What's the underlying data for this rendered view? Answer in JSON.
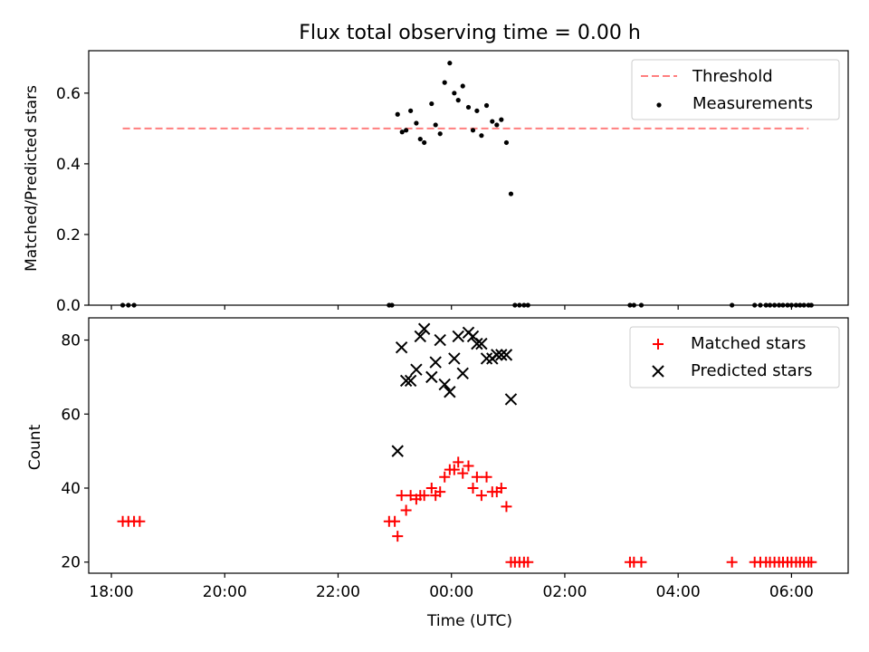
{
  "chart_data": [
    {
      "type": "scatter",
      "title": "Flux total observing time = 0.00 h",
      "xlabel": "",
      "ylabel": "Matched/Predicted stars",
      "xlim": [
        -6.4,
        7.0
      ],
      "ylim": [
        0.0,
        0.72
      ],
      "x_tick_values": [
        -6,
        -4,
        -2,
        0,
        2,
        4,
        6
      ],
      "x_tick_labels": [
        "",
        "",
        "",
        "",
        "",
        "",
        ""
      ],
      "y_ticks": [
        0.0,
        0.2,
        0.4,
        0.6
      ],
      "y_tick_labels": [
        "0.0",
        "0.2",
        "0.4",
        "0.6"
      ],
      "legend_position": "top-right",
      "threshold": {
        "name": "Threshold",
        "y": 0.5,
        "x_start": -5.8,
        "x_end": 6.3,
        "color": "#ff7f7f"
      },
      "series": [
        {
          "name": "Measurements",
          "color": "#000000",
          "x": [
            -5.8,
            -5.7,
            -5.6,
            -1.1,
            -1.05,
            -0.95,
            -0.87,
            -0.8,
            -0.72,
            -0.62,
            -0.55,
            -0.48,
            -0.35,
            -0.28,
            -0.2,
            -0.12,
            -0.03,
            0.05,
            0.12,
            0.2,
            0.3,
            0.38,
            0.45,
            0.53,
            0.62,
            0.72,
            0.8,
            0.88,
            0.97,
            1.05,
            1.12,
            1.2,
            1.28,
            1.35,
            3.15,
            3.22,
            3.35,
            4.95,
            5.35,
            5.45,
            5.55,
            5.62,
            5.7,
            5.78,
            5.85,
            5.93,
            6.0,
            6.08,
            6.15,
            6.22,
            6.3,
            6.35
          ],
          "y": [
            0,
            0,
            0,
            0,
            0,
            0.54,
            0.49,
            0.495,
            0.55,
            0.515,
            0.47,
            0.46,
            0.57,
            0.51,
            0.485,
            0.63,
            0.685,
            0.6,
            0.58,
            0.62,
            0.56,
            0.495,
            0.55,
            0.48,
            0.565,
            0.52,
            0.51,
            0.525,
            0.46,
            0.315,
            0,
            0,
            0,
            0,
            0,
            0,
            0,
            0,
            0,
            0,
            0,
            0,
            0,
            0,
            0,
            0,
            0,
            0,
            0,
            0,
            0,
            0
          ]
        }
      ]
    },
    {
      "type": "scatter",
      "title": "",
      "xlabel": "Time (UTC)",
      "ylabel": "Count",
      "xlim": [
        -6.4,
        7.0
      ],
      "ylim": [
        17,
        86
      ],
      "x_tick_values": [
        -6,
        -4,
        -2,
        0,
        2,
        4,
        6
      ],
      "x_tick_labels": [
        "18:00",
        "20:00",
        "22:00",
        "00:00",
        "02:00",
        "04:00",
        "06:00"
      ],
      "y_ticks": [
        20,
        40,
        60,
        80
      ],
      "y_tick_labels": [
        "20",
        "40",
        "60",
        "80"
      ],
      "legend_position": "top-right",
      "series": [
        {
          "name": "Matched stars",
          "marker": "plus",
          "color": "#ff0000",
          "x": [
            -5.8,
            -5.7,
            -5.6,
            -5.5,
            -1.1,
            -1.0,
            -0.95,
            -0.88,
            -0.8,
            -0.72,
            -0.62,
            -0.55,
            -0.48,
            -0.35,
            -0.28,
            -0.2,
            -0.12,
            -0.03,
            0.05,
            0.12,
            0.2,
            0.3,
            0.38,
            0.45,
            0.53,
            0.62,
            0.72,
            0.8,
            0.88,
            0.97,
            1.05,
            1.12,
            1.2,
            1.28,
            1.35,
            3.15,
            3.22,
            3.35,
            4.95,
            5.35,
            5.45,
            5.55,
            5.62,
            5.7,
            5.78,
            5.85,
            5.93,
            6.0,
            6.08,
            6.15,
            6.22,
            6.3,
            6.35
          ],
          "y": [
            31,
            31,
            31,
            31,
            31,
            31,
            27,
            38,
            34,
            38,
            37,
            38,
            38,
            40,
            38,
            39,
            43,
            45,
            45,
            47,
            44,
            46,
            40,
            43,
            38,
            43,
            39,
            39,
            40,
            35,
            20,
            20,
            20,
            20,
            20,
            20,
            20,
            20,
            20,
            20,
            20,
            20,
            20,
            20,
            20,
            20,
            20,
            20,
            20,
            20,
            20,
            20,
            20
          ]
        },
        {
          "name": "Predicted stars",
          "marker": "x",
          "color": "#000000",
          "x": [
            -0.95,
            -0.88,
            -0.8,
            -0.72,
            -0.62,
            -0.55,
            -0.48,
            -0.35,
            -0.28,
            -0.2,
            -0.12,
            -0.03,
            0.05,
            0.12,
            0.2,
            0.3,
            0.38,
            0.45,
            0.53,
            0.62,
            0.72,
            0.8,
            0.88,
            0.97,
            1.05
          ],
          "y": [
            50,
            78,
            69,
            69,
            72,
            81,
            83,
            70,
            74,
            80,
            68,
            66,
            75,
            81,
            71,
            82,
            81,
            79,
            79,
            75,
            75,
            76,
            76,
            76,
            64
          ]
        }
      ]
    }
  ]
}
